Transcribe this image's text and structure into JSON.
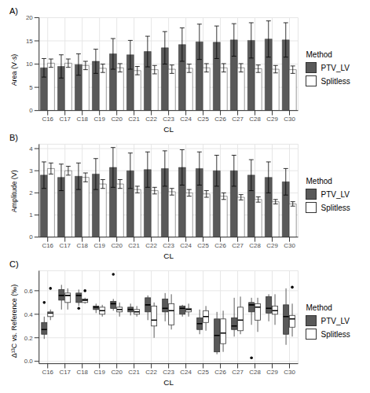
{
  "chart_data": [
    {
      "type": "bar",
      "title": "A)",
      "x_label": "CL",
      "y_label": "Area (V·s)",
      "legend_title": "Method",
      "legend": "right",
      "grid": true,
      "categories": [
        "C16",
        "C17",
        "C18",
        "C19",
        "C20",
        "C21",
        "C22",
        "C23",
        "C24",
        "C25",
        "C26",
        "C27",
        "C28",
        "C29",
        "C30"
      ],
      "ylim": [
        0,
        20
      ],
      "yticks": [
        0,
        5,
        10,
        15,
        20
      ],
      "series": [
        {
          "name": "PTV_LV",
          "color": "#595959",
          "values": [
            9.2,
            9.5,
            9.9,
            10.6,
            12.2,
            12.0,
            12.7,
            13.5,
            14.2,
            14.8,
            14.7,
            15.2,
            15.1,
            15.4,
            15.2
          ],
          "errors": [
            2.0,
            2.5,
            2.3,
            2.6,
            3.3,
            3.1,
            3.3,
            3.5,
            3.6,
            3.8,
            3.5,
            3.5,
            3.8,
            3.9,
            3.7
          ]
        },
        {
          "name": "Splitless",
          "color": "#ffffff",
          "values": [
            10.2,
            10.2,
            9.7,
            9.1,
            9.2,
            8.6,
            8.8,
            8.9,
            9.1,
            9.2,
            9.2,
            9.2,
            9.0,
            8.9,
            8.8
          ],
          "errors": [
            0.9,
            0.9,
            0.9,
            0.9,
            0.9,
            0.9,
            0.9,
            0.9,
            0.9,
            0.9,
            0.9,
            0.9,
            0.8,
            0.8,
            0.8
          ]
        }
      ]
    },
    {
      "type": "bar",
      "title": "B)",
      "x_label": "CL",
      "y_label": "Amplitude (V)",
      "legend_title": "Method",
      "legend": "right",
      "grid": true,
      "categories": [
        "C16",
        "C17",
        "C18",
        "C19",
        "C20",
        "C21",
        "C22",
        "C23",
        "C24",
        "C25",
        "C26",
        "C27",
        "C28",
        "C29",
        "C30"
      ],
      "ylim": [
        0,
        4.2
      ],
      "yticks": [
        0,
        1,
        2,
        3,
        4
      ],
      "series": [
        {
          "name": "PTV_LV",
          "color": "#595959",
          "values": [
            2.8,
            2.7,
            2.75,
            2.85,
            3.15,
            3.0,
            3.05,
            3.1,
            3.15,
            3.1,
            3.0,
            3.0,
            2.8,
            2.7,
            2.5
          ],
          "errors": [
            0.6,
            0.6,
            0.6,
            0.7,
            0.9,
            0.8,
            0.8,
            0.8,
            0.8,
            0.75,
            0.7,
            0.7,
            0.7,
            0.7,
            0.6
          ]
        },
        {
          "name": "Splitless",
          "color": "#ffffff",
          "values": [
            3.1,
            3.0,
            2.7,
            2.4,
            2.4,
            2.15,
            2.1,
            2.05,
            2.0,
            1.95,
            1.85,
            1.8,
            1.7,
            1.6,
            1.5
          ],
          "errors": [
            0.25,
            0.2,
            0.2,
            0.2,
            0.2,
            0.15,
            0.15,
            0.15,
            0.15,
            0.15,
            0.15,
            0.12,
            0.12,
            0.1,
            0.1
          ]
        }
      ]
    },
    {
      "type": "box",
      "title": "C)",
      "x_label": "CL",
      "y_label": "Δ¹³C vs. Reference (‰)",
      "legend_title": "Method",
      "legend": "right",
      "grid": true,
      "categories": [
        "C16",
        "C17",
        "C18",
        "C19",
        "C20",
        "C21",
        "C22",
        "C23",
        "C24",
        "C25",
        "C26",
        "C27",
        "C28",
        "C29",
        "C30"
      ],
      "ylim": [
        -0.02,
        0.77
      ],
      "yticks": [
        {
          "value": 0,
          "label": "0.0"
        },
        0.2,
        0.4,
        0.6
      ],
      "series": [
        {
          "name": "PTV_LV",
          "color": "#595959",
          "values": [
            {
              "min": 0.19,
              "q1": 0.23,
              "median": 0.27,
              "q3": 0.33,
              "max": 0.38,
              "outliers": [
                0.5
              ]
            },
            {
              "min": 0.44,
              "q1": 0.52,
              "median": 0.56,
              "q3": 0.61,
              "max": 0.65,
              "outliers": []
            },
            {
              "min": 0.47,
              "q1": 0.5,
              "median": 0.56,
              "q3": 0.58,
              "max": 0.61,
              "outliers": [
                0.45
              ]
            },
            {
              "min": 0.41,
              "q1": 0.44,
              "median": 0.46,
              "q3": 0.47,
              "max": 0.49,
              "outliers": []
            },
            {
              "min": 0.43,
              "q1": 0.45,
              "median": 0.49,
              "q3": 0.51,
              "max": 0.53,
              "outliers": [
                0.74
              ]
            },
            {
              "min": 0.39,
              "q1": 0.42,
              "median": 0.44,
              "q3": 0.46,
              "max": 0.49,
              "outliers": []
            },
            {
              "min": 0.35,
              "q1": 0.42,
              "median": 0.48,
              "q3": 0.54,
              "max": 0.56,
              "outliers": []
            },
            {
              "min": 0.34,
              "q1": 0.42,
              "median": 0.45,
              "q3": 0.53,
              "max": 0.58,
              "outliers": []
            },
            {
              "min": 0.38,
              "q1": 0.4,
              "median": 0.45,
              "q3": 0.47,
              "max": 0.48,
              "outliers": []
            },
            {
              "min": 0.23,
              "q1": 0.27,
              "median": 0.32,
              "q3": 0.37,
              "max": 0.44,
              "outliers": []
            },
            {
              "min": 0.06,
              "q1": 0.08,
              "median": 0.22,
              "q3": 0.36,
              "max": 0.42,
              "outliers": []
            },
            {
              "min": 0.21,
              "q1": 0.27,
              "median": 0.3,
              "q3": 0.37,
              "max": 0.54,
              "outliers": []
            },
            {
              "min": 0.31,
              "q1": 0.42,
              "median": 0.48,
              "q3": 0.5,
              "max": 0.54,
              "outliers": [
                0.03
              ]
            },
            {
              "min": 0.34,
              "q1": 0.41,
              "median": 0.45,
              "q3": 0.55,
              "max": 0.57,
              "outliers": []
            },
            {
              "min": 0.14,
              "q1": 0.23,
              "median": 0.38,
              "q3": 0.48,
              "max": 0.62,
              "outliers": []
            }
          ]
        },
        {
          "name": "Splitless",
          "color": "#ffffff",
          "values": [
            {
              "min": 0.35,
              "q1": 0.38,
              "median": 0.41,
              "q3": 0.42,
              "max": 0.44,
              "outliers": [
                0.62
              ]
            },
            {
              "min": 0.44,
              "q1": 0.5,
              "median": 0.56,
              "q3": 0.58,
              "max": 0.62,
              "outliers": []
            },
            {
              "min": 0.49,
              "q1": 0.5,
              "median": 0.52,
              "q3": 0.53,
              "max": 0.54,
              "outliers": [
                0.6
              ]
            },
            {
              "min": 0.38,
              "q1": 0.4,
              "median": 0.43,
              "q3": 0.46,
              "max": 0.48,
              "outliers": []
            },
            {
              "min": 0.38,
              "q1": 0.42,
              "median": 0.44,
              "q3": 0.46,
              "max": 0.5,
              "outliers": []
            },
            {
              "min": 0.38,
              "q1": 0.4,
              "median": 0.42,
              "q3": 0.44,
              "max": 0.47,
              "outliers": []
            },
            {
              "min": 0.2,
              "q1": 0.3,
              "median": 0.35,
              "q3": 0.47,
              "max": 0.5,
              "outliers": []
            },
            {
              "min": 0.27,
              "q1": 0.31,
              "median": 0.43,
              "q3": 0.49,
              "max": 0.57,
              "outliers": []
            },
            {
              "min": 0.38,
              "q1": 0.42,
              "median": 0.44,
              "q3": 0.45,
              "max": 0.49,
              "outliers": []
            },
            {
              "min": 0.26,
              "q1": 0.33,
              "median": 0.38,
              "q3": 0.43,
              "max": 0.47,
              "outliers": []
            },
            {
              "min": 0.08,
              "q1": 0.15,
              "median": 0.24,
              "q3": 0.36,
              "max": 0.43,
              "outliers": []
            },
            {
              "min": 0.23,
              "q1": 0.26,
              "median": 0.35,
              "q3": 0.46,
              "max": 0.55,
              "outliers": []
            },
            {
              "min": 0.25,
              "q1": 0.35,
              "median": 0.46,
              "q3": 0.49,
              "max": 0.54,
              "outliers": []
            },
            {
              "min": 0.31,
              "q1": 0.4,
              "median": 0.43,
              "q3": 0.47,
              "max": 0.57,
              "outliers": []
            },
            {
              "min": 0.21,
              "q1": 0.29,
              "median": 0.36,
              "q3": 0.39,
              "max": 0.49,
              "outliers": [
                0.63
              ]
            }
          ]
        }
      ]
    }
  ]
}
